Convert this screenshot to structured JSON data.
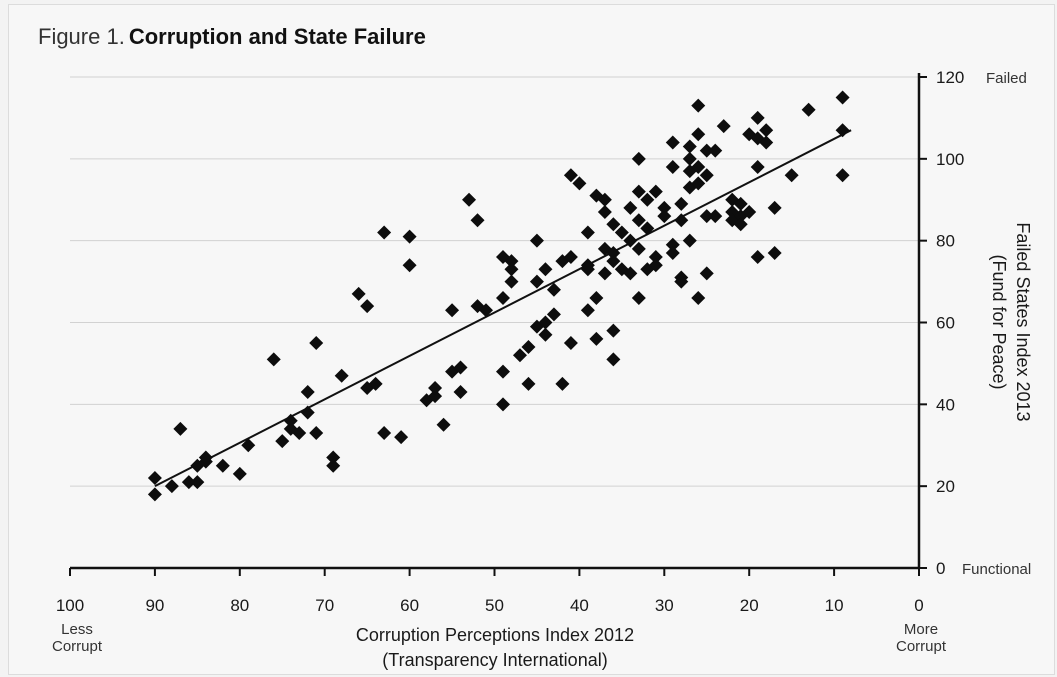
{
  "figure": {
    "label": "Figure 1.",
    "title": "Corruption and State Failure"
  },
  "chart_data": {
    "type": "scatter",
    "title": "Corruption and State Failure",
    "xlabel": [
      "Corruption Perceptions Index 2012",
      "(Transparency International)"
    ],
    "ylabel": [
      "Failed States Index 2013",
      "(Fund for Peace)"
    ],
    "xlim": [
      100,
      0
    ],
    "x_reversed": true,
    "ylim": [
      0,
      120
    ],
    "xticks": [
      100,
      90,
      80,
      70,
      60,
      50,
      40,
      30,
      20,
      10,
      0
    ],
    "yticks": [
      0,
      20,
      40,
      60,
      80,
      100,
      120
    ],
    "x_end_labels": {
      "left": [
        "Less",
        "Corrupt"
      ],
      "right": [
        "More",
        "Corrupt"
      ]
    },
    "y_end_labels": {
      "top": "Failed",
      "bottom": "Functional"
    },
    "grid": "horizontal",
    "trendline": {
      "x": [
        90,
        8
      ],
      "y": [
        20,
        107
      ]
    },
    "points": [
      [
        90,
        22
      ],
      [
        90,
        18
      ],
      [
        88,
        20
      ],
      [
        87,
        34
      ],
      [
        86,
        21
      ],
      [
        85,
        21
      ],
      [
        85,
        25
      ],
      [
        84,
        26
      ],
      [
        84,
        27
      ],
      [
        82,
        25
      ],
      [
        80,
        23
      ],
      [
        79,
        30
      ],
      [
        76,
        51
      ],
      [
        75,
        31
      ],
      [
        74,
        34
      ],
      [
        74,
        36
      ],
      [
        73,
        33
      ],
      [
        72,
        38
      ],
      [
        72,
        43
      ],
      [
        71,
        55
      ],
      [
        71,
        33
      ],
      [
        69,
        27
      ],
      [
        69,
        25
      ],
      [
        68,
        47
      ],
      [
        66,
        67
      ],
      [
        65,
        64
      ],
      [
        65,
        44
      ],
      [
        64,
        45
      ],
      [
        63,
        82
      ],
      [
        63,
        33
      ],
      [
        61,
        32
      ],
      [
        60,
        81
      ],
      [
        60,
        74
      ],
      [
        58,
        41
      ],
      [
        57,
        42
      ],
      [
        57,
        44
      ],
      [
        56,
        35
      ],
      [
        55,
        48
      ],
      [
        55,
        63
      ],
      [
        54,
        43
      ],
      [
        54,
        49
      ],
      [
        53,
        90
      ],
      [
        52,
        85
      ],
      [
        52,
        64
      ],
      [
        51,
        63
      ],
      [
        49,
        40
      ],
      [
        49,
        48
      ],
      [
        49,
        66
      ],
      [
        49,
        76
      ],
      [
        48,
        75
      ],
      [
        48,
        73
      ],
      [
        48,
        70
      ],
      [
        47,
        52
      ],
      [
        46,
        54
      ],
      [
        46,
        45
      ],
      [
        45,
        59
      ],
      [
        45,
        70
      ],
      [
        45,
        80
      ],
      [
        44,
        73
      ],
      [
        44,
        57
      ],
      [
        44,
        60
      ],
      [
        43,
        62
      ],
      [
        43,
        68
      ],
      [
        42,
        45
      ],
      [
        42,
        75
      ],
      [
        41,
        76
      ],
      [
        41,
        55
      ],
      [
        41,
        96
      ],
      [
        40,
        94
      ],
      [
        39,
        74
      ],
      [
        39,
        82
      ],
      [
        39,
        63
      ],
      [
        39,
        73
      ],
      [
        38,
        56
      ],
      [
        38,
        91
      ],
      [
        38,
        66
      ],
      [
        37,
        90
      ],
      [
        37,
        87
      ],
      [
        37,
        78
      ],
      [
        37,
        72
      ],
      [
        36,
        77
      ],
      [
        36,
        75
      ],
      [
        36,
        58
      ],
      [
        36,
        51
      ],
      [
        36,
        84
      ],
      [
        35,
        82
      ],
      [
        35,
        73
      ],
      [
        34,
        88
      ],
      [
        34,
        80
      ],
      [
        34,
        72
      ],
      [
        33,
        92
      ],
      [
        33,
        100
      ],
      [
        33,
        78
      ],
      [
        33,
        66
      ],
      [
        33,
        85
      ],
      [
        32,
        90
      ],
      [
        32,
        83
      ],
      [
        32,
        73
      ],
      [
        31,
        92
      ],
      [
        31,
        76
      ],
      [
        31,
        74
      ],
      [
        30,
        88
      ],
      [
        30,
        86
      ],
      [
        29,
        104
      ],
      [
        29,
        98
      ],
      [
        29,
        79
      ],
      [
        29,
        77
      ],
      [
        28,
        71
      ],
      [
        28,
        70
      ],
      [
        28,
        89
      ],
      [
        28,
        85
      ],
      [
        27,
        103
      ],
      [
        27,
        100
      ],
      [
        27,
        97
      ],
      [
        27,
        93
      ],
      [
        27,
        80
      ],
      [
        26,
        113
      ],
      [
        26,
        106
      ],
      [
        26,
        98
      ],
      [
        26,
        94
      ],
      [
        26,
        66
      ],
      [
        25,
        96
      ],
      [
        25,
        102
      ],
      [
        25,
        86
      ],
      [
        25,
        72
      ],
      [
        24,
        102
      ],
      [
        24,
        86
      ],
      [
        23,
        108
      ],
      [
        22,
        90
      ],
      [
        22,
        87
      ],
      [
        22,
        85
      ],
      [
        21,
        89
      ],
      [
        21,
        86
      ],
      [
        21,
        84
      ],
      [
        20,
        87
      ],
      [
        20,
        106
      ],
      [
        19,
        105
      ],
      [
        19,
        110
      ],
      [
        19,
        98
      ],
      [
        19,
        76
      ],
      [
        18,
        104
      ],
      [
        18,
        107
      ],
      [
        17,
        88
      ],
      [
        17,
        77
      ],
      [
        15,
        96
      ],
      [
        13,
        112
      ],
      [
        9,
        115
      ],
      [
        9,
        107
      ],
      [
        9,
        96
      ]
    ]
  }
}
